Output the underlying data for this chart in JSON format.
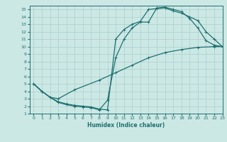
{
  "xlabel": "Humidex (Indice chaleur)",
  "xlim": [
    -0.5,
    23
  ],
  "ylim": [
    1,
    15.5
  ],
  "xticks": [
    0,
    1,
    2,
    3,
    4,
    5,
    6,
    7,
    8,
    9,
    10,
    11,
    12,
    13,
    14,
    15,
    16,
    17,
    18,
    19,
    20,
    21,
    22,
    23
  ],
  "yticks": [
    1,
    2,
    3,
    4,
    5,
    6,
    7,
    8,
    9,
    10,
    11,
    12,
    13,
    14,
    15
  ],
  "background_color": "#cce8e5",
  "grid_color": "#aacfcc",
  "line_color": "#1e7070",
  "curve1_x": [
    0,
    1,
    2,
    3,
    4,
    5,
    6,
    7,
    8,
    9,
    10,
    11,
    12,
    13,
    14,
    15,
    16,
    17,
    18,
    19,
    20,
    21,
    22,
    23
  ],
  "curve1_y": [
    5,
    4,
    3.2,
    2.5,
    2.2,
    2.0,
    1.9,
    1.8,
    1.5,
    2.8,
    8.5,
    11.0,
    12.5,
    13.3,
    13.3,
    15.2,
    15.3,
    15.0,
    14.7,
    13.8,
    12.5,
    10.8,
    10.2,
    10.0
  ],
  "curve2_x": [
    0,
    1,
    2,
    3,
    4,
    5,
    6,
    7,
    8,
    9,
    10,
    11,
    12,
    13,
    14,
    15,
    16,
    17,
    18,
    19,
    20,
    21,
    22,
    23
  ],
  "curve2_y": [
    5,
    4,
    3.2,
    2.6,
    2.3,
    2.1,
    2.0,
    1.9,
    1.6,
    1.5,
    11.0,
    12.3,
    13.0,
    13.4,
    15.0,
    15.1,
    15.2,
    14.8,
    14.5,
    14.0,
    13.5,
    12.0,
    11.0,
    10.0
  ],
  "curve3_x": [
    0,
    1,
    2,
    3,
    5,
    8,
    10,
    12,
    14,
    16,
    18,
    20,
    22,
    23
  ],
  "curve3_y": [
    5,
    4.0,
    3.2,
    3.0,
    4.2,
    5.5,
    6.5,
    7.5,
    8.5,
    9.2,
    9.6,
    9.9,
    10.0,
    10.0
  ]
}
